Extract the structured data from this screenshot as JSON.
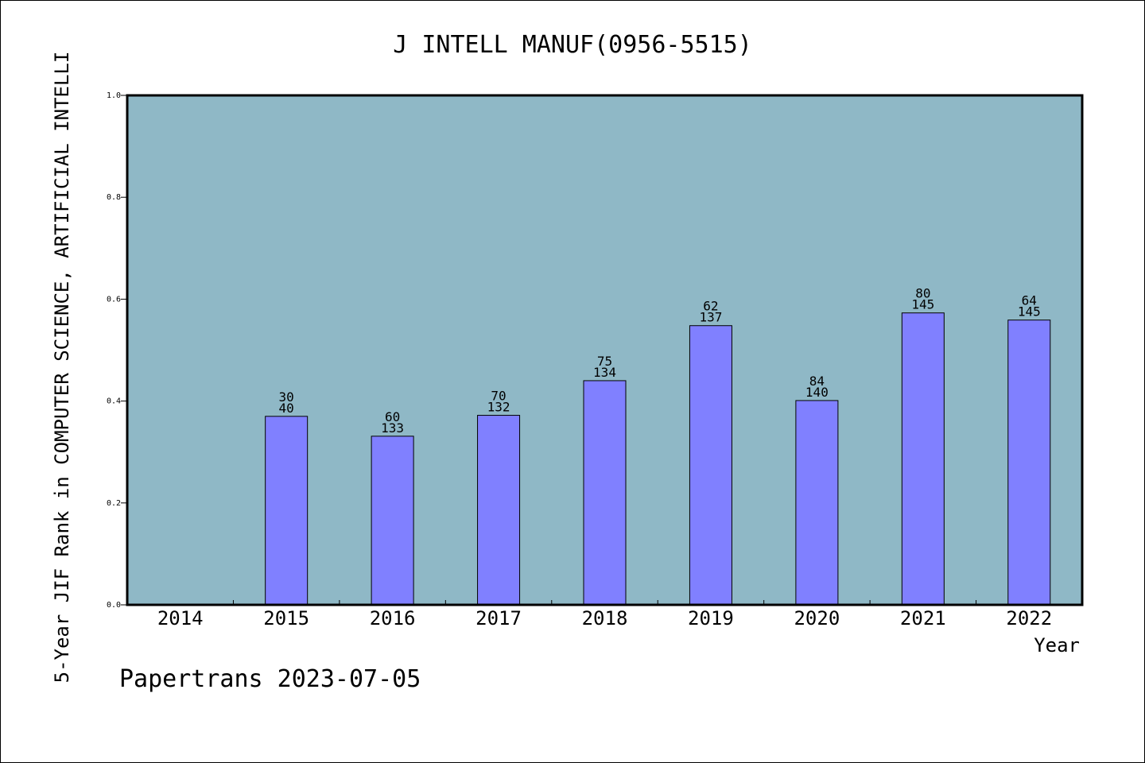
{
  "chart_data": {
    "type": "bar",
    "title": "J INTELL MANUF(0956-5515)",
    "xlabel": "Year",
    "ylabel": "5-Year JIF Rank in COMPUTER SCIENCE, ARTIFICIAL INTELLI",
    "categories": [
      "2014",
      "2015",
      "2016",
      "2017",
      "2018",
      "2019",
      "2020",
      "2021",
      "2022"
    ],
    "values": [
      null,
      0.37,
      0.331,
      0.372,
      0.44,
      0.548,
      0.401,
      0.573,
      0.559
    ],
    "rank": [
      null,
      "30",
      "60",
      "70",
      "75",
      "62",
      "84",
      "80",
      "64"
    ],
    "total": [
      null,
      "40",
      "133",
      "132",
      "134",
      "137",
      "140",
      "145",
      "145"
    ],
    "ylim": [
      0,
      1.0
    ],
    "yticks": [
      "0.0",
      "0.2",
      "0.4",
      "0.6",
      "0.8",
      "1.0"
    ],
    "grid": false,
    "colors": {
      "plot_background": "#8fb8c6",
      "bar": "#8080ff",
      "bar_edge": "#000000"
    }
  },
  "footer": "Papertrans 2023-07-05"
}
